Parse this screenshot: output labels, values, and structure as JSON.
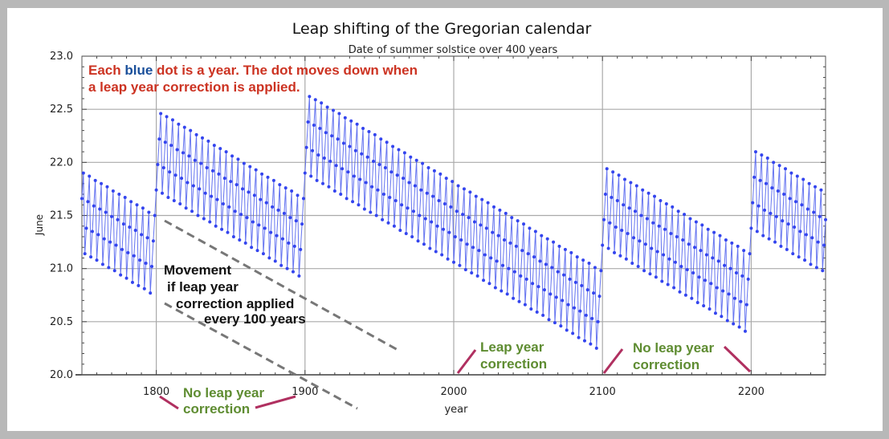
{
  "chart_data": {
    "type": "line",
    "title": "Leap shifting of the Gregorian calendar",
    "subtitle": "Date of summer solstice over 400 years",
    "xlabel": "year",
    "ylabel": "June",
    "xlim": [
      1750,
      2250
    ],
    "ylim": [
      20.0,
      23.0
    ],
    "x_ticks": [
      "1800",
      "1900",
      "2000",
      "2100",
      "2200"
    ],
    "y_ticks": [
      "20.0",
      "20.5",
      "21.0",
      "21.5",
      "22.0",
      "22.5",
      "23.0"
    ],
    "grid": true,
    "series_color": "#3344ee",
    "x_start": 1750,
    "values": [
      21.66,
      21.9,
      21.14,
      21.38,
      21.63,
      21.87,
      21.11,
      21.35,
      21.59,
      21.83,
      21.08,
      21.32,
      21.56,
      21.8,
      21.04,
      21.28,
      21.53,
      21.77,
      21.01,
      21.25,
      21.49,
      21.73,
      20.98,
      21.22,
      21.46,
      21.7,
      20.94,
      21.18,
      21.42,
      21.67,
      20.91,
      21.15,
      21.39,
      21.63,
      20.87,
      21.12,
      21.36,
      21.6,
      20.84,
      21.08,
      21.32,
      21.57,
      20.81,
      21.05,
      21.29,
      21.53,
      20.77,
      21.02,
      21.26,
      21.5,
      21.74,
      21.98,
      22.22,
      22.46,
      21.71,
      21.95,
      22.19,
      22.43,
      21.67,
      21.91,
      22.16,
      22.4,
      21.64,
      21.88,
      22.12,
      22.36,
      21.61,
      21.85,
      22.09,
      22.33,
      21.57,
      21.81,
      22.06,
      22.3,
      21.54,
      21.78,
      22.02,
      22.26,
      21.5,
      21.75,
      21.99,
      22.23,
      21.47,
      21.71,
      21.95,
      22.2,
      21.44,
      21.68,
      21.92,
      22.16,
      21.4,
      21.65,
      21.89,
      22.13,
      21.37,
      21.61,
      21.85,
      22.1,
      21.34,
      21.58,
      21.82,
      22.06,
      21.3,
      21.54,
      21.79,
      22.03,
      21.27,
      21.51,
      21.75,
      21.99,
      21.24,
      21.48,
      21.72,
      21.96,
      21.2,
      21.44,
      21.69,
      21.93,
      21.17,
      21.41,
      21.65,
      21.89,
      21.14,
      21.38,
      21.62,
      21.86,
      21.1,
      21.34,
      21.58,
      21.83,
      21.07,
      21.31,
      21.55,
      21.79,
      21.03,
      21.28,
      21.52,
      21.76,
      21.0,
      21.24,
      21.48,
      21.73,
      20.97,
      21.21,
      21.45,
      21.69,
      20.93,
      21.18,
      21.42,
      21.66,
      21.9,
      22.14,
      22.38,
      22.62,
      21.87,
      22.11,
      22.35,
      22.59,
      21.83,
      22.07,
      22.32,
      22.56,
      21.8,
      22.04,
      22.28,
      22.52,
      21.77,
      22.01,
      22.25,
      22.49,
      21.73,
      21.97,
      22.22,
      22.46,
      21.7,
      21.94,
      22.18,
      22.42,
      21.66,
      21.91,
      22.15,
      22.39,
      21.63,
      21.87,
      22.11,
      22.36,
      21.6,
      21.84,
      22.08,
      22.32,
      21.56,
      21.81,
      22.05,
      22.29,
      21.53,
      21.77,
      22.01,
      22.26,
      21.5,
      21.74,
      21.98,
      22.22,
      21.46,
      21.7,
      21.95,
      22.19,
      21.43,
      21.67,
      21.91,
      22.15,
      21.4,
      21.64,
      21.88,
      22.12,
      21.36,
      21.6,
      21.85,
      22.09,
      21.33,
      21.57,
      21.81,
      22.05,
      21.3,
      21.54,
      21.78,
      22.02,
      21.26,
      21.5,
      21.74,
      21.99,
      21.23,
      21.47,
      21.71,
      21.95,
      21.19,
      21.44,
      21.68,
      21.92,
      21.16,
      21.4,
      21.64,
      21.89,
      21.13,
      21.37,
      21.61,
      21.85,
      21.09,
      21.34,
      21.58,
      21.82,
      21.06,
      21.3,
      21.54,
      21.78,
      21.03,
      21.27,
      21.51,
      21.75,
      20.99,
      21.23,
      21.48,
      21.72,
      20.96,
      21.2,
      21.44,
      21.68,
      20.93,
      21.17,
      21.41,
      21.65,
      20.89,
      21.13,
      21.38,
      21.62,
      20.86,
      21.1,
      21.34,
      21.58,
      20.82,
      21.07,
      21.31,
      21.55,
      20.79,
      21.03,
      21.27,
      21.52,
      20.76,
      21.0,
      21.24,
      21.48,
      20.72,
      20.97,
      21.21,
      21.45,
      20.69,
      20.93,
      21.17,
      21.42,
      20.66,
      20.9,
      21.14,
      21.38,
      20.62,
      20.86,
      21.11,
      21.35,
      20.59,
      20.83,
      21.07,
      21.31,
      20.56,
      20.8,
      21.04,
      21.28,
      20.52,
      20.76,
      21.01,
      21.25,
      20.49,
      20.73,
      20.97,
      21.21,
      20.46,
      20.7,
      20.94,
      21.18,
      20.42,
      20.66,
      20.9,
      21.15,
      20.39,
      20.63,
      20.87,
      21.11,
      20.35,
      20.6,
      20.84,
      21.08,
      20.32,
      20.56,
      20.8,
      21.05,
      20.29,
      20.53,
      20.77,
      21.01,
      20.25,
      20.5,
      20.74,
      20.98,
      21.22,
      21.46,
      21.7,
      21.94,
      21.19,
      21.43,
      21.67,
      21.91,
      21.15,
      21.39,
      21.64,
      21.88,
      21.12,
      21.36,
      21.6,
      21.84,
      21.09,
      21.33,
      21.57,
      21.81,
      21.05,
      21.29,
      21.54,
      21.78,
      21.02,
      21.26,
      21.5,
      21.74,
      20.98,
      21.23,
      21.47,
      21.71,
      20.95,
      21.19,
      21.43,
      21.68,
      20.92,
      21.16,
      21.4,
      21.64,
      20.88,
      21.13,
      21.37,
      21.61,
      20.85,
      21.09,
      21.33,
      21.58,
      20.82,
      21.06,
      21.3,
      21.54,
      20.78,
      21.02,
      21.27,
      21.51,
      20.75,
      20.99,
      21.23,
      21.47,
      20.72,
      20.96,
      21.2,
      21.44,
      20.68,
      20.92,
      21.17,
      21.41,
      20.65,
      20.89,
      21.13,
      21.37,
      20.62,
      20.86,
      21.1,
      21.34,
      20.58,
      20.82,
      21.07,
      21.31,
      20.55,
      20.79,
      21.03,
      21.27,
      20.51,
      20.76,
      21.0,
      21.24,
      20.48,
      20.72,
      20.96,
      21.21,
      20.45,
      20.69,
      20.93,
      21.17,
      20.41,
      20.66,
      20.9,
      21.14,
      21.38,
      21.62,
      21.86,
      22.1,
      21.35,
      21.59,
      21.83,
      22.07,
      21.31,
      21.55,
      21.8,
      22.04,
      21.28,
      21.52,
      21.76,
      22.0,
      21.25,
      21.49,
      21.73,
      21.97,
      21.21,
      21.45,
      21.7,
      21.94,
      21.18,
      21.42,
      21.66,
      21.9,
      21.14,
      21.39,
      21.63,
      21.87,
      21.11,
      21.35,
      21.6,
      21.84,
      21.08,
      21.32,
      21.56,
      21.8,
      21.04,
      21.29,
      21.53,
      21.77,
      21.01,
      21.25,
      21.49,
      21.74,
      20.98,
      21.22,
      21.46
    ]
  },
  "annotations": {
    "intro_prefix": "Each ",
    "intro_blue": "blue",
    "intro_rest": " dot is a year.  The dot moves down when",
    "intro_line2": "a leap year correction is applied.",
    "movement": [
      "Movement",
      "if leap year",
      "correction applied",
      "every 100 years"
    ],
    "no_leap_1": [
      "No leap year",
      "correction"
    ],
    "leap": [
      "Leap year",
      "correction"
    ],
    "no_leap_2": [
      "No leap year",
      "correction"
    ]
  },
  "colors": {
    "red_text": "#cc3322",
    "blue_word": "#1a4f9a",
    "green_text": "#5e8c31",
    "connector": "#b03060",
    "dashed": "#777777"
  }
}
